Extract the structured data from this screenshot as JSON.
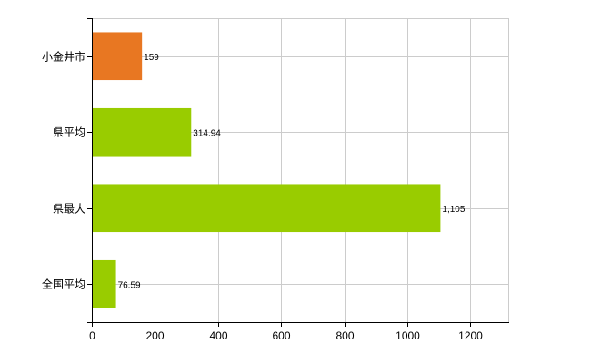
{
  "chart_data": {
    "type": "bar",
    "orientation": "horizontal",
    "categories": [
      "小金井市",
      "県平均",
      "県最大",
      "全国平均"
    ],
    "values": [
      159,
      314.94,
      1105,
      76.59
    ],
    "value_labels": [
      "159",
      "314.94",
      "1,105",
      "76.59"
    ],
    "bar_colors": [
      "#e87722",
      "#99cc00",
      "#99cc00",
      "#99cc00"
    ],
    "xlim": [
      0,
      1320
    ],
    "xticks": [
      0,
      200,
      400,
      600,
      800,
      1000,
      1200
    ],
    "grid": true,
    "grid_color": "#cccccc",
    "legend": "none"
  }
}
